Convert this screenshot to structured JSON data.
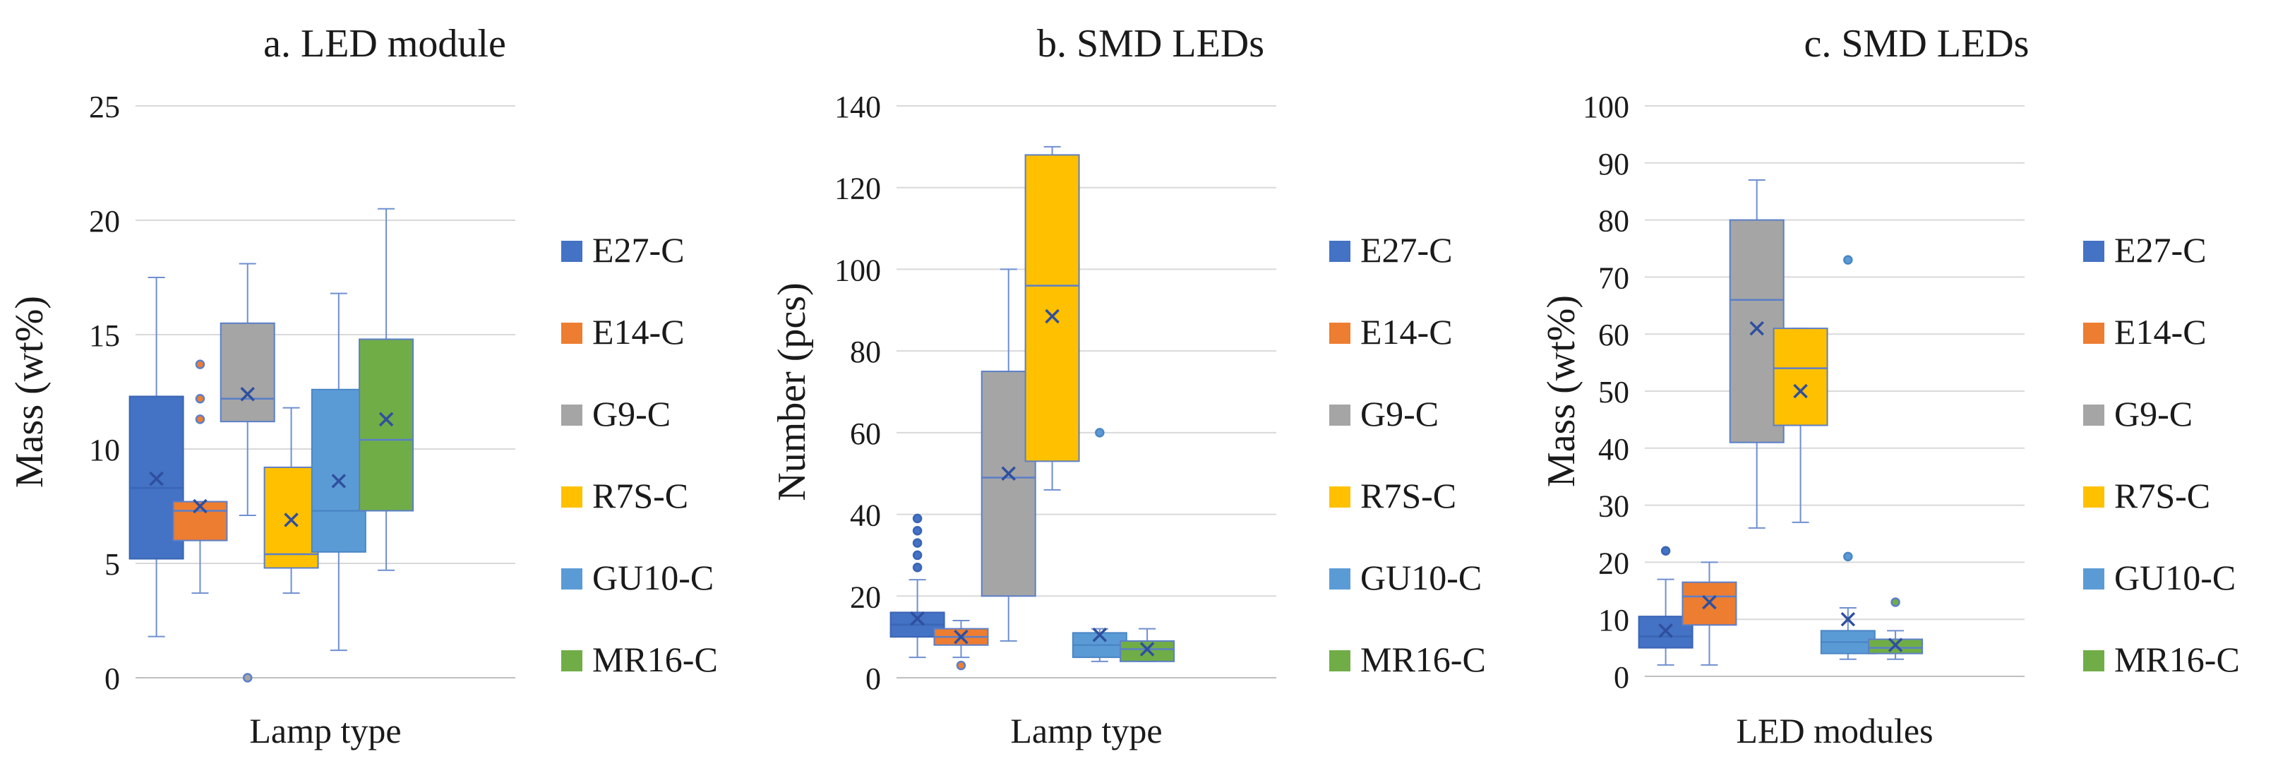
{
  "chart_data": [
    {
      "type": "box",
      "title": "a. LED module",
      "xlabel": "Lamp type",
      "ylabel": "Mass (wt%)",
      "ylim": [
        0,
        25
      ],
      "ytick_step": 5,
      "yticks": [
        "0",
        "5",
        "10",
        "15",
        "20",
        "25"
      ],
      "legend_position": "right",
      "series": [
        {
          "name": "E27-C",
          "min": 1.8,
          "q1": 5.2,
          "median": 8.3,
          "q3": 12.3,
          "max": 17.5,
          "mean": 8.7,
          "outliers": []
        },
        {
          "name": "E14-C",
          "min": 3.7,
          "q1": 6.0,
          "median": 7.3,
          "q3": 7.7,
          "max": 7.7,
          "mean": 7.5,
          "outliers": [
            11.3,
            12.2,
            13.7
          ]
        },
        {
          "name": "G9-C",
          "min": 7.1,
          "q1": 11.2,
          "median": 12.2,
          "q3": 15.5,
          "max": 18.1,
          "mean": 12.4,
          "outliers": [
            0.0
          ]
        },
        {
          "name": "R7S-C",
          "min": 3.7,
          "q1": 4.8,
          "median": 5.4,
          "q3": 9.2,
          "max": 11.8,
          "mean": 6.9,
          "outliers": []
        },
        {
          "name": "GU10-C",
          "min": 1.2,
          "q1": 5.5,
          "median": 7.3,
          "q3": 12.6,
          "max": 16.8,
          "mean": 8.6,
          "outliers": []
        },
        {
          "name": "MR16-C",
          "min": 4.7,
          "q1": 7.3,
          "median": 10.4,
          "q3": 14.8,
          "max": 20.5,
          "mean": 11.3,
          "outliers": []
        }
      ]
    },
    {
      "type": "box",
      "title": "b. SMD LEDs",
      "xlabel": "Lamp type",
      "ylabel": "Number (pcs)",
      "ylim": [
        0,
        140
      ],
      "ytick_step": 20,
      "yticks": [
        "0",
        "20",
        "40",
        "60",
        "80",
        "100",
        "120",
        "140"
      ],
      "legend_position": "right",
      "series": [
        {
          "name": "E27-C",
          "min": 5,
          "q1": 10,
          "median": 13,
          "q3": 16,
          "max": 24,
          "mean": 14.5,
          "outliers": [
            27,
            30,
            33,
            36,
            39
          ]
        },
        {
          "name": "E14-C",
          "min": 5,
          "q1": 8,
          "median": 10,
          "q3": 12,
          "max": 14,
          "mean": 10,
          "outliers": [
            3
          ]
        },
        {
          "name": "G9-C",
          "min": 9,
          "q1": 20,
          "median": 49,
          "q3": 75,
          "max": 100,
          "mean": 50,
          "outliers": []
        },
        {
          "name": "R7S-C",
          "min": 46,
          "q1": 53,
          "median": 96,
          "q3": 128,
          "max": 130,
          "mean": 88.5,
          "outliers": []
        },
        {
          "name": "GU10-C",
          "min": 4,
          "q1": 5,
          "median": 8,
          "q3": 11,
          "max": 12,
          "mean": 10.5,
          "outliers": [
            60
          ]
        },
        {
          "name": "MR16-C",
          "min": 4,
          "q1": 4,
          "median": 7,
          "q3": 9,
          "max": 12,
          "mean": 7,
          "outliers": []
        }
      ]
    },
    {
      "type": "box",
      "title": "c. SMD LEDs",
      "xlabel": "LED modules",
      "ylabel": "Mass (wt%)",
      "ylim": [
        0,
        100
      ],
      "ytick_step": 10,
      "yticks": [
        "0",
        "10",
        "20",
        "30",
        "40",
        "50",
        "60",
        "70",
        "80",
        "90",
        "100"
      ],
      "legend_position": "right",
      "series": [
        {
          "name": "E27-C",
          "min": 2,
          "q1": 5,
          "median": 7,
          "q3": 10.5,
          "max": 17,
          "mean": 8,
          "outliers": [
            22
          ]
        },
        {
          "name": "E14-C",
          "min": 2,
          "q1": 9,
          "median": 14,
          "q3": 16.5,
          "max": 20,
          "mean": 13,
          "outliers": []
        },
        {
          "name": "G9-C",
          "min": 26,
          "q1": 41,
          "median": 66,
          "q3": 80,
          "max": 87,
          "mean": 61,
          "outliers": []
        },
        {
          "name": "R7S-C",
          "min": 27,
          "q1": 44,
          "median": 54,
          "q3": 61,
          "max": 61,
          "mean": 50,
          "outliers": []
        },
        {
          "name": "GU10-C",
          "min": 3,
          "q1": 4,
          "median": 6,
          "q3": 8,
          "max": 12,
          "mean": 10,
          "outliers": [
            21,
            73
          ]
        },
        {
          "name": "MR16-C",
          "min": 3,
          "q1": 4,
          "median": 5,
          "q3": 6.5,
          "max": 8,
          "mean": 5.5,
          "outliers": [
            13
          ]
        }
      ]
    }
  ],
  "colors": {
    "E27-C": {
      "fill": "#4472c4",
      "stroke": "#3b65b5"
    },
    "E14-C": {
      "fill": "#ed7d31",
      "stroke": "#5b7fc8"
    },
    "G9-C": {
      "fill": "#a5a5a5",
      "stroke": "#5b7fc8"
    },
    "R7S-C": {
      "fill": "#ffc000",
      "stroke": "#5b7fc8"
    },
    "GU10-C": {
      "fill": "#5b9bd5",
      "stroke": "#4a86c5"
    },
    "MR16-C": {
      "fill": "#70ad47",
      "stroke": "#5b7fc8"
    },
    "whisker": "#6f8fd0",
    "marker": "#2f4f9f",
    "axis_text": "#1a1a1a"
  }
}
